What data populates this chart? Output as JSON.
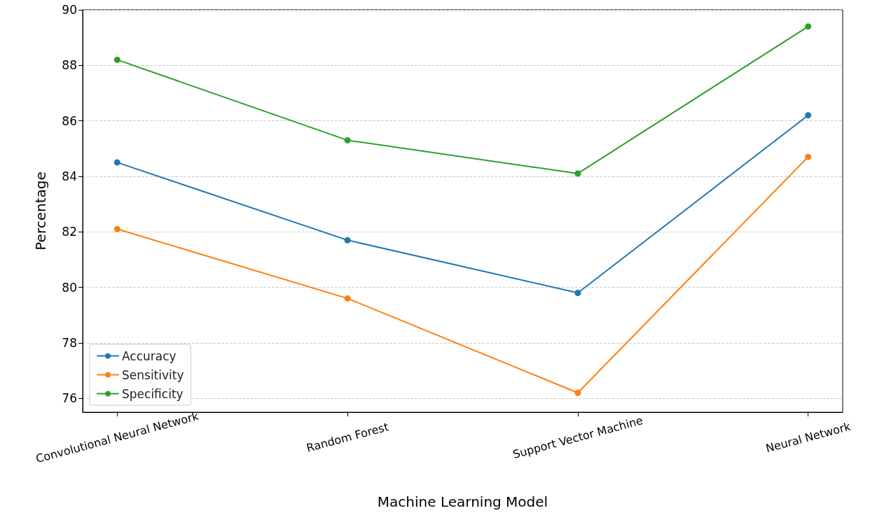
{
  "chart_data": {
    "type": "line",
    "xlabel": "Machine Learning Model",
    "ylabel": "Percentage",
    "categories": [
      "Convolutional Neural Network",
      "Random Forest",
      "Support Vector Machine",
      "Neural Network"
    ],
    "series": [
      {
        "name": "Accuracy",
        "color": "#1f77b4",
        "values": [
          84.5,
          81.7,
          79.8,
          86.2
        ]
      },
      {
        "name": "Sensitivity",
        "color": "#ff7f0e",
        "values": [
          82.1,
          79.6,
          76.2,
          84.7
        ]
      },
      {
        "name": "Specificity",
        "color": "#2ca02c",
        "values": [
          88.2,
          85.3,
          84.1,
          89.4
        ]
      }
    ],
    "ylim": [
      75.5,
      90
    ],
    "yticks": [
      76,
      78,
      80,
      82,
      84,
      86,
      88,
      90
    ],
    "grid": "y",
    "legend": "bottom left",
    "marker": "circle",
    "line_style": "solid"
  }
}
